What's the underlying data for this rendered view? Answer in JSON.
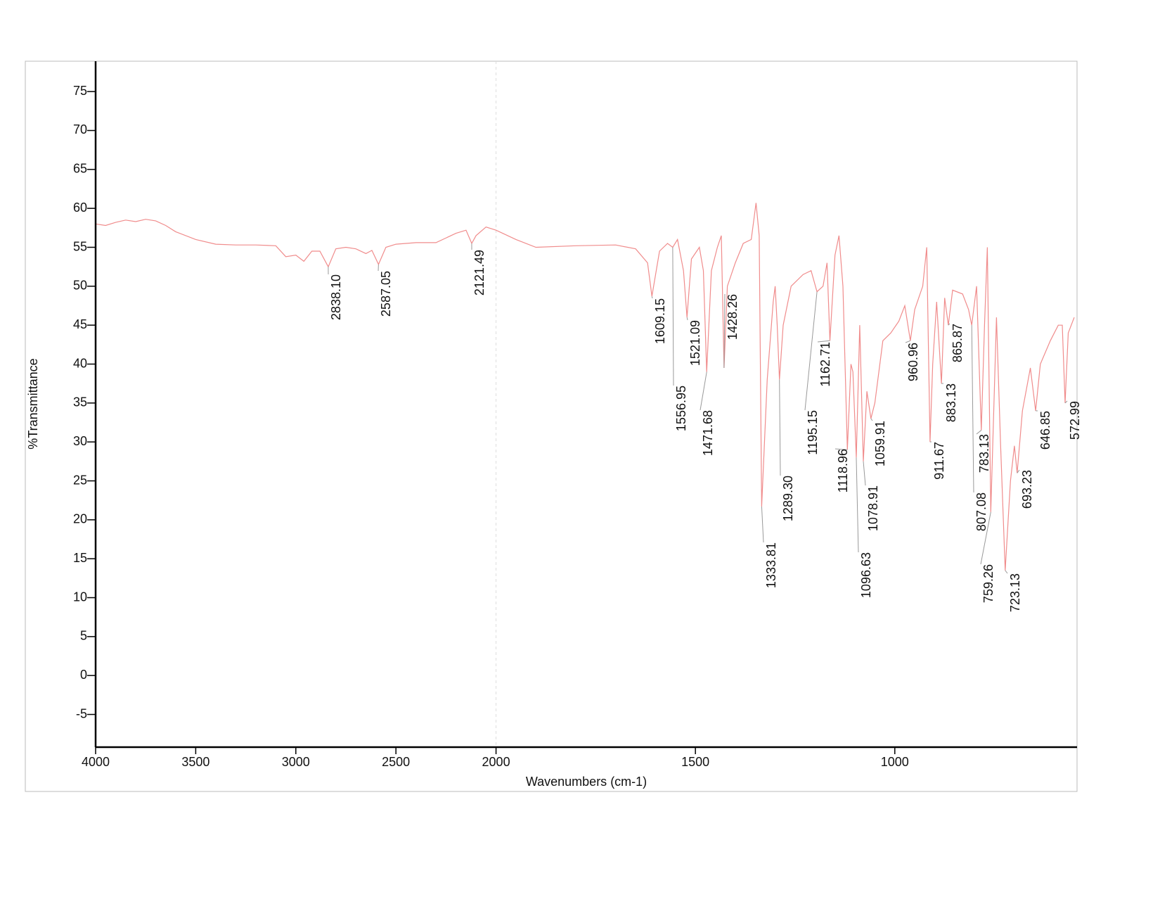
{
  "chart_data": {
    "type": "line",
    "x_label": "Wavenumbers (cm-1)",
    "y_label": "%Transmittance",
    "xlim": [
      4000,
      543
    ],
    "xbreak": 2000,
    "xticks": [
      4000,
      3500,
      3000,
      2500,
      2000,
      1500,
      1000
    ],
    "ylim": [
      -9.2,
      78.9
    ],
    "yticks": [
      -5,
      0,
      5,
      10,
      15,
      20,
      25,
      30,
      35,
      40,
      45,
      50,
      55,
      60,
      65,
      70,
      75
    ],
    "series": [
      {
        "color": "#f08c8c",
        "x": [
          4000,
          3950,
          3900,
          3850,
          3800,
          3750,
          3700,
          3650,
          3600,
          3500,
          3400,
          3300,
          3200,
          3100,
          3050,
          3000,
          2960,
          2920,
          2880,
          2838.1,
          2800,
          2750,
          2700,
          2650,
          2620,
          2587.05,
          2550,
          2500,
          2400,
          2300,
          2200,
          2150,
          2121.49,
          2100,
          2050,
          2000,
          1950,
          1900,
          1800,
          1700,
          1650,
          1620,
          1609.15,
          1590,
          1570,
          1556.95,
          1545,
          1530,
          1521.09,
          1510,
          1490,
          1480,
          1471.68,
          1460,
          1445,
          1435,
          1428.26,
          1420,
          1400,
          1380,
          1360,
          1348,
          1340,
          1333.81,
          1320,
          1305,
          1300,
          1295,
          1289.3,
          1280,
          1260,
          1230,
          1210,
          1195.15,
          1180,
          1170,
          1162.71,
          1150,
          1140,
          1130,
          1118.96,
          1110,
          1105,
          1096.63,
          1088,
          1078.91,
          1070,
          1059.91,
          1050,
          1030,
          1010,
          990,
          975,
          960.96,
          950,
          930,
          920,
          911.67,
          905,
          895,
          883.13,
          875,
          865.87,
          855,
          830,
          815,
          807.08,
          795,
          783.13,
          775,
          768,
          759.26,
          745,
          735,
          723.13,
          710,
          700,
          693.23,
          680,
          660,
          646.85,
          635,
          610,
          590,
          580,
          572.99,
          565,
          550
        ],
        "values": [
          58,
          57.8,
          58.2,
          58.5,
          58.3,
          58.6,
          58.4,
          57.8,
          57,
          56,
          55.4,
          55.3,
          55.3,
          55.2,
          53.8,
          54,
          53.2,
          54.5,
          54.5,
          52.5,
          54.8,
          55,
          54.8,
          54.2,
          54.6,
          52.8,
          55,
          55.4,
          55.6,
          55.6,
          56.8,
          57.2,
          55.5,
          56.5,
          57.6,
          57.2,
          56,
          55,
          55.2,
          55.3,
          54.8,
          53,
          48.7,
          54.5,
          55.5,
          55,
          56,
          52,
          46,
          53.5,
          55,
          52,
          39,
          52,
          55,
          56.5,
          39.5,
          50,
          53,
          55.5,
          56,
          60.7,
          56.5,
          21.7,
          38,
          48,
          50,
          45,
          38,
          45,
          50,
          51.5,
          52,
          49.3,
          50,
          53,
          43,
          54,
          56.5,
          50,
          29,
          40,
          39,
          28,
          45,
          27.5,
          36.5,
          33,
          35,
          43,
          44,
          45.5,
          47.5,
          43,
          47,
          50,
          55,
          30,
          40,
          48,
          37.5,
          48.5,
          45,
          49.5,
          49,
          47,
          45,
          50,
          31.5,
          45,
          55,
          21,
          46,
          30,
          13.5,
          25,
          29.5,
          26,
          34,
          39.5,
          34,
          40,
          43,
          45,
          45,
          35,
          44,
          46
        ]
      }
    ],
    "peaks": [
      {
        "x": 2838.1,
        "label": "2838.10",
        "y": 52.5
      },
      {
        "x": 2587.05,
        "label": "2587.05",
        "y": 52.8
      },
      {
        "x": 2121.49,
        "label": "2121.49",
        "y": 55.5
      },
      {
        "x": 1609.15,
        "label": "1609.15",
        "y": 48.7
      },
      {
        "x": 1556.95,
        "label": "1556.95",
        "y": 55
      },
      {
        "x": 1521.09,
        "label": "1521.09",
        "y": 46
      },
      {
        "x": 1471.68,
        "label": "1471.68",
        "y": 39
      },
      {
        "x": 1428.26,
        "label": "1428.26",
        "y": 39.5
      },
      {
        "x": 1333.81,
        "label": "1333.81",
        "y": 21.7
      },
      {
        "x": 1289.3,
        "label": "1289.30",
        "y": 38
      },
      {
        "x": 1195.15,
        "label": "1195.15",
        "y": 49.3
      },
      {
        "x": 1162.71,
        "label": "1162.71",
        "y": 43
      },
      {
        "x": 1118.96,
        "label": "1118.96",
        "y": 29
      },
      {
        "x": 1096.63,
        "label": "1096.63",
        "y": 28
      },
      {
        "x": 1078.91,
        "label": "1078.91",
        "y": 27.5
      },
      {
        "x": 1059.91,
        "label": "1059.91",
        "y": 33
      },
      {
        "x": 960.96,
        "label": "960.96",
        "y": 43
      },
      {
        "x": 911.67,
        "label": "911.67",
        "y": 30
      },
      {
        "x": 883.13,
        "label": "883.13",
        "y": 37.5
      },
      {
        "x": 865.87,
        "label": "865.87",
        "y": 45
      },
      {
        "x": 807.08,
        "label": "807.08",
        "y": 45
      },
      {
        "x": 783.13,
        "label": "783.13",
        "y": 31.5
      },
      {
        "x": 759.26,
        "label": "759.26",
        "y": 21
      },
      {
        "x": 723.13,
        "label": "723.13",
        "y": 13.5
      },
      {
        "x": 693.23,
        "label": "693.23",
        "y": 26
      },
      {
        "x": 646.85,
        "label": "646.85",
        "y": 34
      },
      {
        "x": 572.99,
        "label": "572.99",
        "y": 35
      }
    ]
  }
}
